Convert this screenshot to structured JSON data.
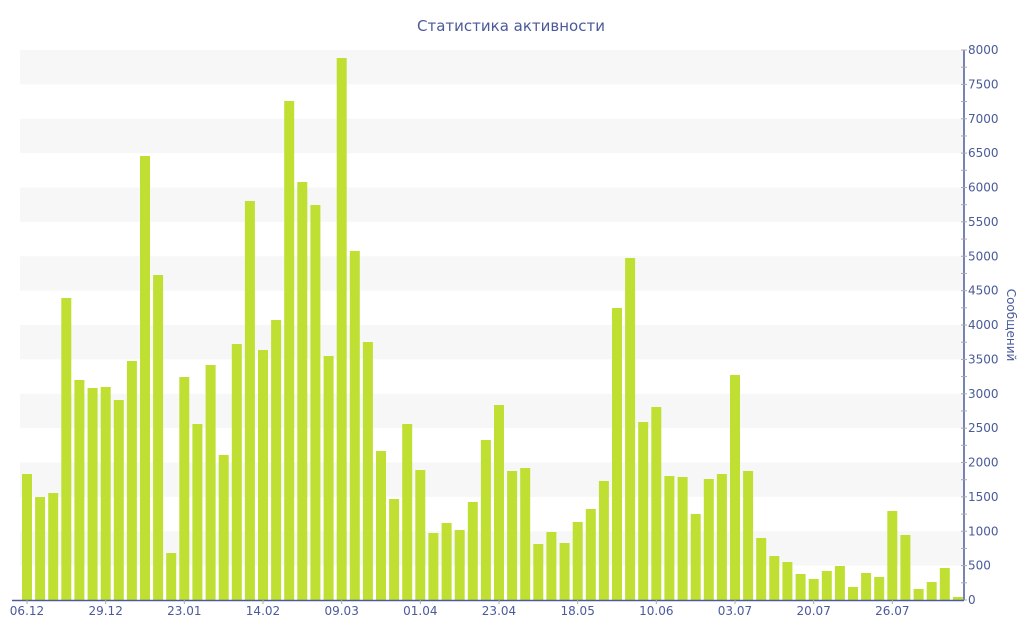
{
  "chart_data": {
    "type": "bar",
    "title": "Статистика активности",
    "xlabel": "",
    "ylabel": "Сообщений",
    "ylim": [
      0,
      8000
    ],
    "yticks": [
      0,
      500,
      1000,
      1500,
      2000,
      2500,
      3000,
      3500,
      4000,
      4500,
      5000,
      5500,
      6000,
      6500,
      7000,
      7500,
      8000
    ],
    "grid": "alternating horizontal bands",
    "y_axis_position": "right",
    "xtick_labels": [
      "06.12",
      "29.12",
      "23.01",
      "14.02",
      "09.03",
      "01.04",
      "23.04",
      "18.05",
      "10.06",
      "03.07",
      "20.07",
      "26.07"
    ],
    "xtick_every": 6,
    "values": [
      1833,
      1498,
      1556,
      4393,
      3200,
      3084,
      3098,
      2909,
      3476,
      6458,
      4727,
      684,
      3244,
      2560,
      3418,
      2109,
      3724,
      5804,
      3636,
      4073,
      7258,
      6080,
      5745,
      3549,
      7884,
      5076,
      3753,
      2167,
      1469,
      2560,
      1891,
      975,
      1120,
      1018,
      1425,
      2327,
      2836,
      1876,
      1920,
      815,
      989,
      829,
      1135,
      1324,
      1731,
      4247,
      4975,
      2589,
      2807,
      1804,
      1789,
      1251,
      1760,
      1833,
      3273,
      1876,
      902,
      640,
      553,
      378,
      305,
      422,
      495,
      189,
      393,
      335,
      1295,
      945,
      160,
      262,
      465,
      44
    ],
    "colors": {
      "bar": "#bfe033",
      "axis": "#4a5a9a",
      "band": "#f7f7f7"
    }
  }
}
